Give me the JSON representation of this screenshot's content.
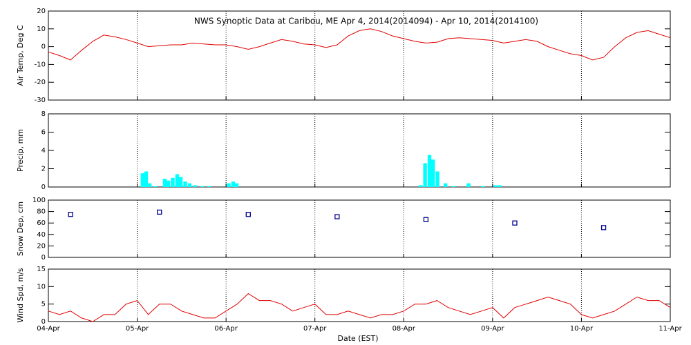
{
  "chart_data": [
    {
      "type": "line",
      "title": "NWS Synoptic Data at Caribou, ME   Apr  4, 2014(2014094) - Apr 10, 2014(2014100)",
      "y_label": "Air Temp, Deg C",
      "color": "#e00000",
      "x": [
        0,
        0.125,
        0.25,
        0.375,
        0.5,
        0.625,
        0.75,
        0.875,
        1,
        1.125,
        1.25,
        1.375,
        1.5,
        1.625,
        1.75,
        1.875,
        2,
        2.125,
        2.25,
        2.375,
        2.5,
        2.625,
        2.75,
        2.875,
        3,
        3.125,
        3.25,
        3.375,
        3.5,
        3.625,
        3.75,
        3.875,
        4,
        4.125,
        4.25,
        4.375,
        4.5,
        4.625,
        4.75,
        4.875,
        5,
        5.125,
        5.25,
        5.375,
        5.5,
        5.625,
        5.75,
        5.875,
        6,
        6.125,
        6.25,
        6.375,
        6.5,
        6.625,
        6.75,
        6.875,
        7
      ],
      "values": [
        -3,
        -5,
        -7.5,
        -2,
        3,
        6.5,
        5.5,
        4,
        2,
        0,
        0.5,
        1,
        1,
        2,
        1.5,
        1,
        1,
        0,
        -1.5,
        0,
        2,
        4,
        3,
        1.5,
        1,
        -0.5,
        1,
        6,
        9,
        10,
        8.5,
        6,
        4.5,
        3,
        2,
        2.5,
        4.5,
        5,
        4.5,
        4,
        3.5,
        2,
        3,
        4,
        3,
        0,
        -2,
        -4,
        -5,
        -7.5,
        -6,
        0,
        5,
        8,
        9,
        7,
        5
      ],
      "xlim": [
        0,
        7
      ],
      "xticks": [
        0,
        1,
        2,
        3,
        4,
        5,
        6,
        7
      ],
      "ylim": [
        -30,
        20
      ],
      "yticks": [
        -30,
        -20,
        -10,
        0,
        10,
        20
      ],
      "grid": true
    },
    {
      "type": "bar",
      "y_label": "Precip, mm",
      "color": "#00ffff",
      "x": [
        1.06,
        1.1,
        1.14,
        1.2,
        1.31,
        1.35,
        1.4,
        1.45,
        1.49,
        1.54,
        1.59,
        1.65,
        1.73,
        1.81,
        2.03,
        2.08,
        2.12,
        4.19,
        4.24,
        4.29,
        4.33,
        4.38,
        4.47,
        4.56,
        4.73,
        4.89,
        5.03,
        5.08
      ],
      "values": [
        1.5,
        1.7,
        0.4,
        0.1,
        0.9,
        0.7,
        1,
        1.4,
        1.1,
        0.6,
        0.4,
        0.2,
        0.1,
        0.1,
        0.4,
        0.6,
        0.4,
        0.2,
        2.6,
        3.5,
        3,
        1.7,
        0.4,
        0.1,
        0.4,
        0.1,
        0.2,
        0.2
      ],
      "xlim": [
        0,
        7
      ],
      "xticks": [
        0,
        1,
        2,
        3,
        4,
        5,
        6,
        7
      ],
      "ylim": [
        0,
        8
      ],
      "yticks": [
        0,
        2,
        4,
        6,
        8
      ],
      "grid": true
    },
    {
      "type": "scatter",
      "y_label": "Snow Dep, cm",
      "color": "#00008b",
      "x": [
        0.25,
        1.25,
        2.25,
        3.25,
        4.25,
        5.25,
        6.25
      ],
      "values": [
        75,
        79,
        75,
        71,
        66,
        60,
        52
      ],
      "xlim": [
        0,
        7
      ],
      "xticks": [
        0,
        1,
        2,
        3,
        4,
        5,
        6,
        7
      ],
      "ylim": [
        0,
        100
      ],
      "yticks": [
        0,
        20,
        40,
        60,
        80,
        100
      ],
      "grid": true
    },
    {
      "type": "line",
      "y_label": "Wind Spd, m/s",
      "x_label": "Date (EST)",
      "color": "#e00000",
      "x": [
        0,
        0.125,
        0.25,
        0.375,
        0.5,
        0.625,
        0.75,
        0.875,
        1,
        1.125,
        1.25,
        1.375,
        1.5,
        1.625,
        1.75,
        1.875,
        2,
        2.125,
        2.25,
        2.375,
        2.5,
        2.625,
        2.75,
        2.875,
        3,
        3.125,
        3.25,
        3.375,
        3.5,
        3.625,
        3.75,
        3.875,
        4,
        4.125,
        4.25,
        4.375,
        4.5,
        4.625,
        4.75,
        4.875,
        5,
        5.125,
        5.25,
        5.375,
        5.5,
        5.625,
        5.75,
        5.875,
        6,
        6.125,
        6.25,
        6.375,
        6.5,
        6.625,
        6.75,
        6.875,
        7
      ],
      "values": [
        3,
        2,
        3,
        1,
        0,
        2,
        2,
        5,
        6,
        2,
        5,
        5,
        3,
        2,
        1,
        1,
        3,
        5,
        8,
        6,
        6,
        5,
        3,
        4,
        5,
        2,
        2,
        3,
        2,
        1,
        2,
        2,
        3,
        5,
        5,
        6,
        4,
        3,
        2,
        3,
        4,
        1,
        4,
        5,
        6,
        7,
        6,
        5,
        2,
        1,
        2,
        3,
        5,
        7,
        6,
        6,
        4
      ],
      "xlim": [
        0,
        7
      ],
      "xticks": [
        {
          "value": 0,
          "label": "04-Apr"
        },
        {
          "value": 1,
          "label": "05-Apr"
        },
        {
          "value": 2,
          "label": "06-Apr"
        },
        {
          "value": 3,
          "label": "07-Apr"
        },
        {
          "value": 4,
          "label": "08-Apr"
        },
        {
          "value": 5,
          "label": "09-Apr"
        },
        {
          "value": 6,
          "label": "10-Apr"
        },
        {
          "value": 7,
          "label": "11-Apr"
        }
      ],
      "ylim": [
        0,
        15
      ],
      "yticks": [
        0,
        5,
        10,
        15
      ],
      "grid": true
    }
  ]
}
